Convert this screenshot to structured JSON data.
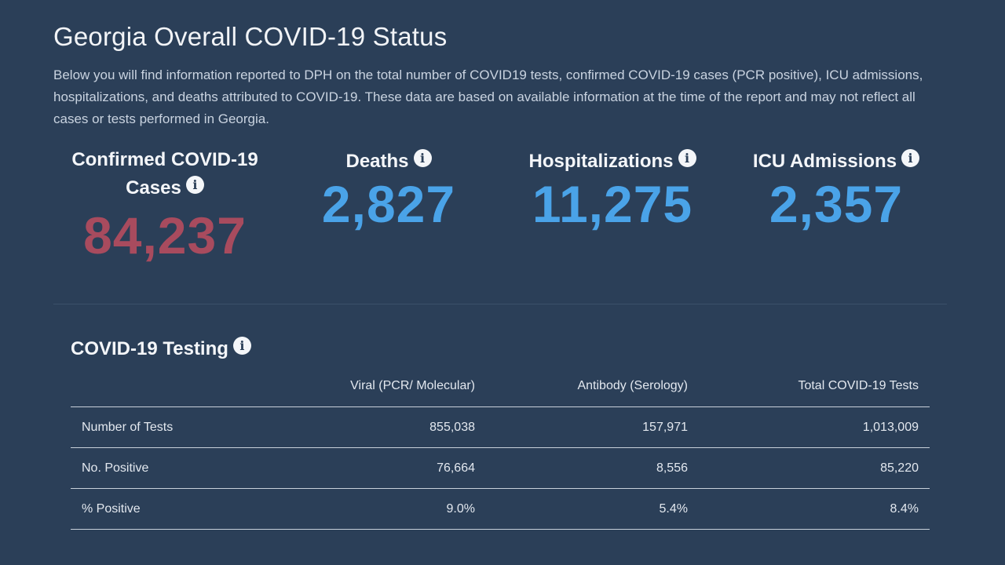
{
  "header": {
    "title": "Georgia Overall COVID-19 Status",
    "intro": "Below you will find information reported to DPH on the total number of COVID19 tests, confirmed COVID-19 cases (PCR positive), ICU admissions, hospitalizations, and deaths attributed to COVID-19. These data are based on available information at the time of the report and may not reflect all cases or tests performed in Georgia."
  },
  "stats": {
    "cases": {
      "label_line1": "Confirmed COVID-19",
      "label_line2": "Cases",
      "value": "84,237"
    },
    "deaths": {
      "label": "Deaths",
      "value": "2,827"
    },
    "hospitalizations": {
      "label": "Hospitalizations",
      "value": "11,275"
    },
    "icu": {
      "label": "ICU Admissions",
      "value": "2,357"
    }
  },
  "icons": {
    "info": "i"
  },
  "colors": {
    "background": "#2b3f58",
    "cases_value": "#a84b5e",
    "metric_value": "#4aa3e8"
  },
  "testing": {
    "title": "COVID-19 Testing",
    "columns": [
      "",
      "Viral (PCR/ Molecular)",
      "Antibody (Serology)",
      "Total COVID-19 Tests"
    ],
    "rows": [
      {
        "label": "Number of Tests",
        "viral": "855,038",
        "antibody": "157,971",
        "total": "1,013,009"
      },
      {
        "label": "No. Positive",
        "viral": "76,664",
        "antibody": "8,556",
        "total": "85,220"
      },
      {
        "label": "% Positive",
        "viral": "9.0%",
        "antibody": "5.4%",
        "total": "8.4%"
      }
    ]
  }
}
